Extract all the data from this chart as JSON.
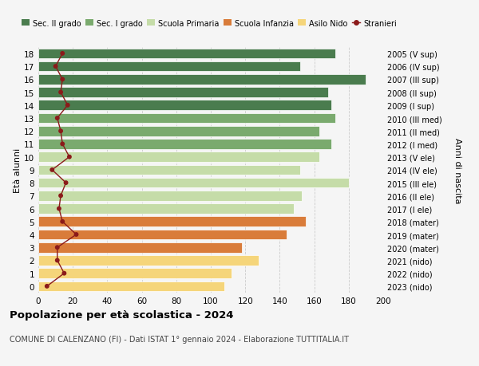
{
  "ages": [
    18,
    17,
    16,
    15,
    14,
    13,
    12,
    11,
    10,
    9,
    8,
    7,
    6,
    5,
    4,
    3,
    2,
    1,
    0
  ],
  "right_labels": [
    "2005 (V sup)",
    "2006 (IV sup)",
    "2007 (III sup)",
    "2008 (II sup)",
    "2009 (I sup)",
    "2010 (III med)",
    "2011 (II med)",
    "2012 (I med)",
    "2013 (V ele)",
    "2014 (IV ele)",
    "2015 (III ele)",
    "2016 (II ele)",
    "2017 (I ele)",
    "2018 (mater)",
    "2019 (mater)",
    "2020 (mater)",
    "2021 (nido)",
    "2022 (nido)",
    "2023 (nido)"
  ],
  "bar_values": [
    172,
    152,
    190,
    168,
    170,
    172,
    163,
    170,
    163,
    152,
    180,
    153,
    148,
    155,
    144,
    118,
    128,
    112,
    108
  ],
  "bar_colors": [
    "#4a7c4e",
    "#4a7c4e",
    "#4a7c4e",
    "#4a7c4e",
    "#4a7c4e",
    "#7aaa6e",
    "#7aaa6e",
    "#7aaa6e",
    "#c5dca8",
    "#c5dca8",
    "#c5dca8",
    "#c5dca8",
    "#c5dca8",
    "#d97c3a",
    "#d97c3a",
    "#d97c3a",
    "#f5d57a",
    "#f5d57a",
    "#f5d57a"
  ],
  "stranieri_values": [
    14,
    10,
    14,
    13,
    17,
    11,
    13,
    14,
    18,
    8,
    16,
    13,
    12,
    14,
    22,
    11,
    11,
    15,
    5
  ],
  "title": "Popolazione per età scolastica - 2024",
  "subtitle": "COMUNE DI CALENZANO (FI) - Dati ISTAT 1° gennaio 2024 - Elaborazione TUTTITALIA.IT",
  "ylabel": "Età alunni",
  "right_ylabel": "Anni di nascita",
  "xlim": [
    0,
    200
  ],
  "xticks": [
    0,
    20,
    40,
    60,
    80,
    100,
    120,
    140,
    160,
    180,
    200
  ],
  "legend_labels": [
    "Sec. II grado",
    "Sec. I grado",
    "Scuola Primaria",
    "Scuola Infanzia",
    "Asilo Nido",
    "Stranieri"
  ],
  "legend_colors": [
    "#4a7c4e",
    "#7aaa6e",
    "#c5dca8",
    "#d97c3a",
    "#f5d57a",
    "#8b1a1a"
  ],
  "background_color": "#f5f5f5",
  "grid_color": "#cccccc"
}
